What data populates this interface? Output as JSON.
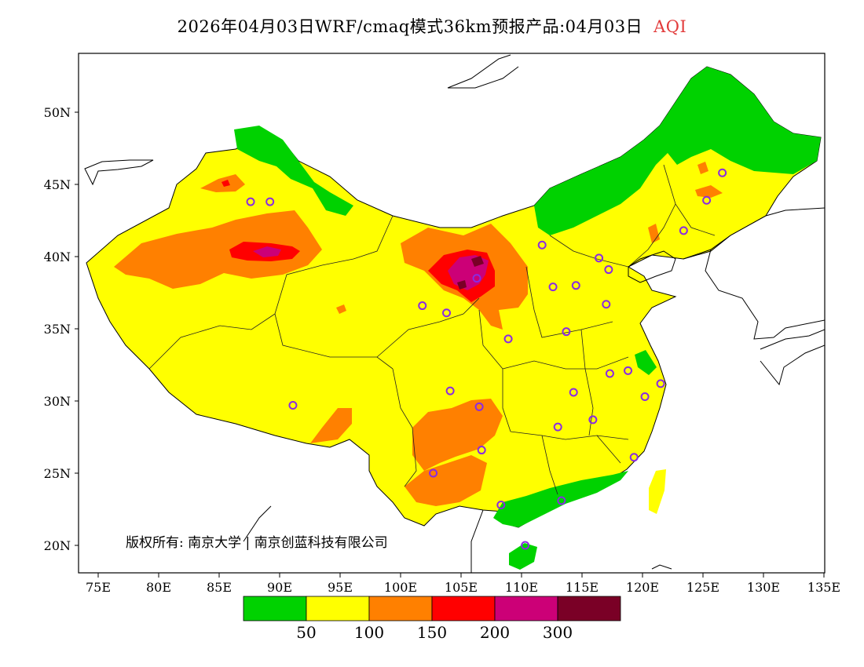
{
  "title": {
    "main": "2026年04月03日WRF/cmaq模式36km预报产品:04月03日",
    "variable": "AQI"
  },
  "colors": {
    "good": "#00d200",
    "moderate": "#ffff00",
    "light": "#ff8000",
    "medium": "#ff0000",
    "heavy": "#cc0077",
    "severe": "#7a0026",
    "site_marker": "#8a2be2",
    "title_accent": "#e23b3b"
  },
  "axes": {
    "y_ticks": [
      "20N",
      "25N",
      "30N",
      "35N",
      "40N",
      "45N",
      "50N"
    ],
    "x_ticks": [
      "75E",
      "80E",
      "85E",
      "90E",
      "95E",
      "100E",
      "105E",
      "110E",
      "115E",
      "120E",
      "125E",
      "130E",
      "135E"
    ]
  },
  "copyright": "版权所有: 南京大学 | 南京创蓝科技有限公司",
  "legend": {
    "thresholds": [
      "50",
      "100",
      "150",
      "200",
      "300"
    ],
    "color_keys": [
      "good",
      "moderate",
      "light",
      "medium",
      "heavy",
      "severe"
    ]
  },
  "sites": [
    {
      "lon": 89.2,
      "lat": 43.8
    },
    {
      "lon": 87.6,
      "lat": 43.8
    },
    {
      "lon": 101.8,
      "lat": 36.6
    },
    {
      "lon": 103.8,
      "lat": 36.1
    },
    {
      "lon": 106.3,
      "lat": 38.5
    },
    {
      "lon": 111.7,
      "lat": 40.8
    },
    {
      "lon": 112.6,
      "lat": 37.9
    },
    {
      "lon": 114.5,
      "lat": 38.0
    },
    {
      "lon": 116.4,
      "lat": 39.9
    },
    {
      "lon": 117.2,
      "lat": 39.1
    },
    {
      "lon": 117.0,
      "lat": 36.7
    },
    {
      "lon": 113.7,
      "lat": 34.8
    },
    {
      "lon": 108.9,
      "lat": 34.3
    },
    {
      "lon": 104.1,
      "lat": 30.7
    },
    {
      "lon": 106.5,
      "lat": 29.6
    },
    {
      "lon": 106.7,
      "lat": 26.6
    },
    {
      "lon": 102.7,
      "lat": 25.0
    },
    {
      "lon": 108.3,
      "lat": 22.8
    },
    {
      "lon": 113.3,
      "lat": 23.1
    },
    {
      "lon": 110.3,
      "lat": 20.0
    },
    {
      "lon": 114.3,
      "lat": 30.6
    },
    {
      "lon": 113.0,
      "lat": 28.2
    },
    {
      "lon": 115.9,
      "lat": 28.7
    },
    {
      "lon": 117.3,
      "lat": 31.9
    },
    {
      "lon": 118.8,
      "lat": 32.1
    },
    {
      "lon": 120.2,
      "lat": 30.3
    },
    {
      "lon": 121.5,
      "lat": 31.2
    },
    {
      "lon": 119.3,
      "lat": 26.1
    },
    {
      "lon": 91.1,
      "lat": 29.7
    },
    {
      "lon": 123.4,
      "lat": 41.8
    },
    {
      "lon": 125.3,
      "lat": 43.9
    },
    {
      "lon": 126.6,
      "lat": 45.8
    }
  ]
}
